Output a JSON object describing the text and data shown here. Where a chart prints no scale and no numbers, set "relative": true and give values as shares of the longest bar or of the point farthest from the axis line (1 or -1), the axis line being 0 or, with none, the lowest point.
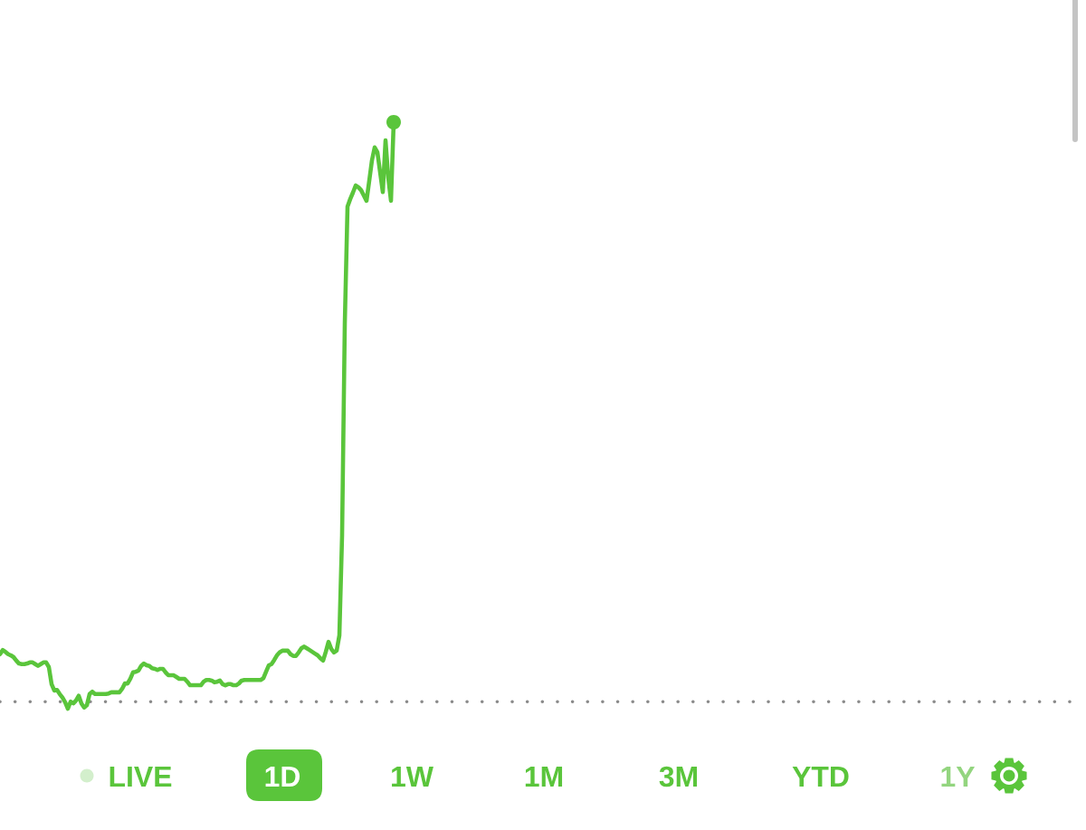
{
  "chart_data": {
    "type": "line",
    "relative": true,
    "tick_labels": false,
    "categories": [
      null,
      null,
      null,
      null,
      null,
      null,
      null,
      null,
      null,
      null,
      null,
      null,
      null,
      null,
      null,
      null,
      null,
      null,
      null,
      null,
      null,
      null,
      null,
      null,
      null,
      null,
      null,
      null,
      null,
      null,
      null,
      null,
      null,
      null,
      null,
      null,
      null,
      null,
      null,
      null,
      null,
      null,
      null,
      null,
      null,
      null,
      null,
      null,
      null,
      null,
      null,
      null,
      null,
      null,
      null,
      null,
      null,
      null,
      null,
      null,
      null,
      null,
      null,
      null,
      null,
      null,
      null,
      null,
      null,
      null,
      null,
      null,
      null,
      null,
      null,
      null,
      null,
      null,
      null,
      null,
      null,
      null,
      null,
      null,
      null,
      null,
      null,
      null,
      null,
      null,
      null,
      null,
      null,
      null,
      null,
      null,
      null,
      null,
      null,
      null,
      null,
      null,
      null,
      null,
      null,
      null,
      null,
      null,
      null,
      null,
      null,
      null,
      null,
      null,
      null,
      null,
      null,
      null,
      null,
      null,
      null,
      null,
      null,
      null,
      null,
      null,
      null,
      null,
      null,
      null,
      null,
      null,
      null,
      null,
      null,
      null,
      null,
      null,
      null,
      null,
      null,
      null,
      null,
      null,
      null,
      null
    ],
    "series": [
      {
        "color": "#5ac53b",
        "values": [
          0.093,
          0.1,
          0.097,
          0.093,
          0.091,
          0.088,
          0.082,
          0.077,
          0.076,
          0.076,
          0.077,
          0.079,
          0.079,
          0.076,
          0.073,
          0.076,
          0.079,
          0.079,
          0.071,
          0.042,
          0.031,
          0.032,
          0.025,
          0.019,
          0.011,
          0,
          0.012,
          0.009,
          0.014,
          0.022,
          0.009,
          0.002,
          0.006,
          0.025,
          0.029,
          0.025,
          0.025,
          0.025,
          0.025,
          0.025,
          0.026,
          0.028,
          0.028,
          0.028,
          0.028,
          0.034,
          0.043,
          0.043,
          0.051,
          0.062,
          0.063,
          0.065,
          0.073,
          0.077,
          0.074,
          0.073,
          0.069,
          0.068,
          0.066,
          0.068,
          0.068,
          0.062,
          0.057,
          0.057,
          0.057,
          0.054,
          0.051,
          0.051,
          0.051,
          0.046,
          0.04,
          0.04,
          0.04,
          0.04,
          0.04,
          0.046,
          0.049,
          0.049,
          0.048,
          0.045,
          0.046,
          0.048,
          0.042,
          0.04,
          0.042,
          0.042,
          0.04,
          0.04,
          0.043,
          0.048,
          0.049,
          0.049,
          0.049,
          0.049,
          0.049,
          0.049,
          0.049,
          0.052,
          0.063,
          0.074,
          0.076,
          0.083,
          0.091,
          0.096,
          0.099,
          0.099,
          0.099,
          0.093,
          0.09,
          0.09,
          0.096,
          0.103,
          0.106,
          0.103,
          0.1,
          0.097,
          0.094,
          0.091,
          0.086,
          0.082,
          0.097,
          0.114,
          0.102,
          0.096,
          0.099,
          0.125,
          0.296,
          0.657,
          0.856,
          0.869,
          0.88,
          0.892,
          0.889,
          0.884,
          0.875,
          0.866,
          0.9,
          0.935,
          0.957,
          0.949,
          0.915,
          0.881,
          0.969,
          0.906,
          0.866,
          1
        ]
      }
    ],
    "ref_lines": [
      {
        "axis": "y",
        "value": 0.012,
        "color": "#8a8a8a",
        "line_style": "dotted"
      }
    ],
    "annotations": [
      "LIVE",
      "1D",
      "1W",
      "1M",
      "3M",
      "YTD",
      "1Y"
    ]
  }
}
